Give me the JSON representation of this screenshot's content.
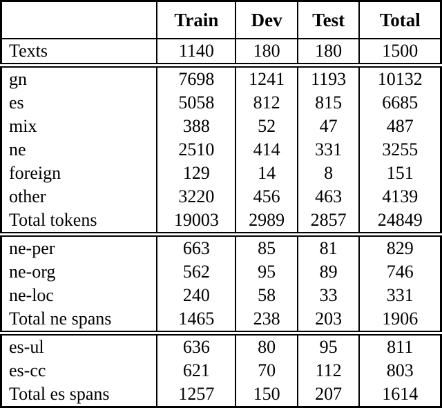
{
  "table": {
    "columns": [
      "",
      "Train",
      "Dev",
      "Test",
      "Total"
    ],
    "sections": [
      {
        "name": "texts",
        "rows": [
          {
            "label": "Texts",
            "values": [
              "1140",
              "180",
              "180",
              "1500"
            ]
          }
        ]
      },
      {
        "name": "tokens",
        "rows": [
          {
            "label": "gn",
            "values": [
              "7698",
              "1241",
              "1193",
              "10132"
            ]
          },
          {
            "label": "es",
            "values": [
              "5058",
              "812",
              "815",
              "6685"
            ]
          },
          {
            "label": "mix",
            "values": [
              "388",
              "52",
              "47",
              "487"
            ]
          },
          {
            "label": "ne",
            "values": [
              "2510",
              "414",
              "331",
              "3255"
            ]
          },
          {
            "label": "foreign",
            "values": [
              "129",
              "14",
              "8",
              "151"
            ]
          },
          {
            "label": "other",
            "values": [
              "3220",
              "456",
              "463",
              "4139"
            ]
          },
          {
            "label": "Total tokens",
            "values": [
              "19003",
              "2989",
              "2857",
              "24849"
            ]
          }
        ]
      },
      {
        "name": "ne-spans",
        "rows": [
          {
            "label": "ne-per",
            "values": [
              "663",
              "85",
              "81",
              "829"
            ]
          },
          {
            "label": "ne-org",
            "values": [
              "562",
              "95",
              "89",
              "746"
            ]
          },
          {
            "label": "ne-loc",
            "values": [
              "240",
              "58",
              "33",
              "331"
            ]
          },
          {
            "label": "Total ne spans",
            "values": [
              "1465",
              "238",
              "203",
              "1906"
            ]
          }
        ]
      },
      {
        "name": "es-spans",
        "rows": [
          {
            "label": "es-ul",
            "values": [
              "636",
              "80",
              "95",
              "811"
            ]
          },
          {
            "label": "es-cc",
            "values": [
              "621",
              "70",
              "112",
              "803"
            ]
          },
          {
            "label": "Total es spans",
            "values": [
              "1257",
              "150",
              "207",
              "1614"
            ]
          }
        ]
      }
    ]
  }
}
